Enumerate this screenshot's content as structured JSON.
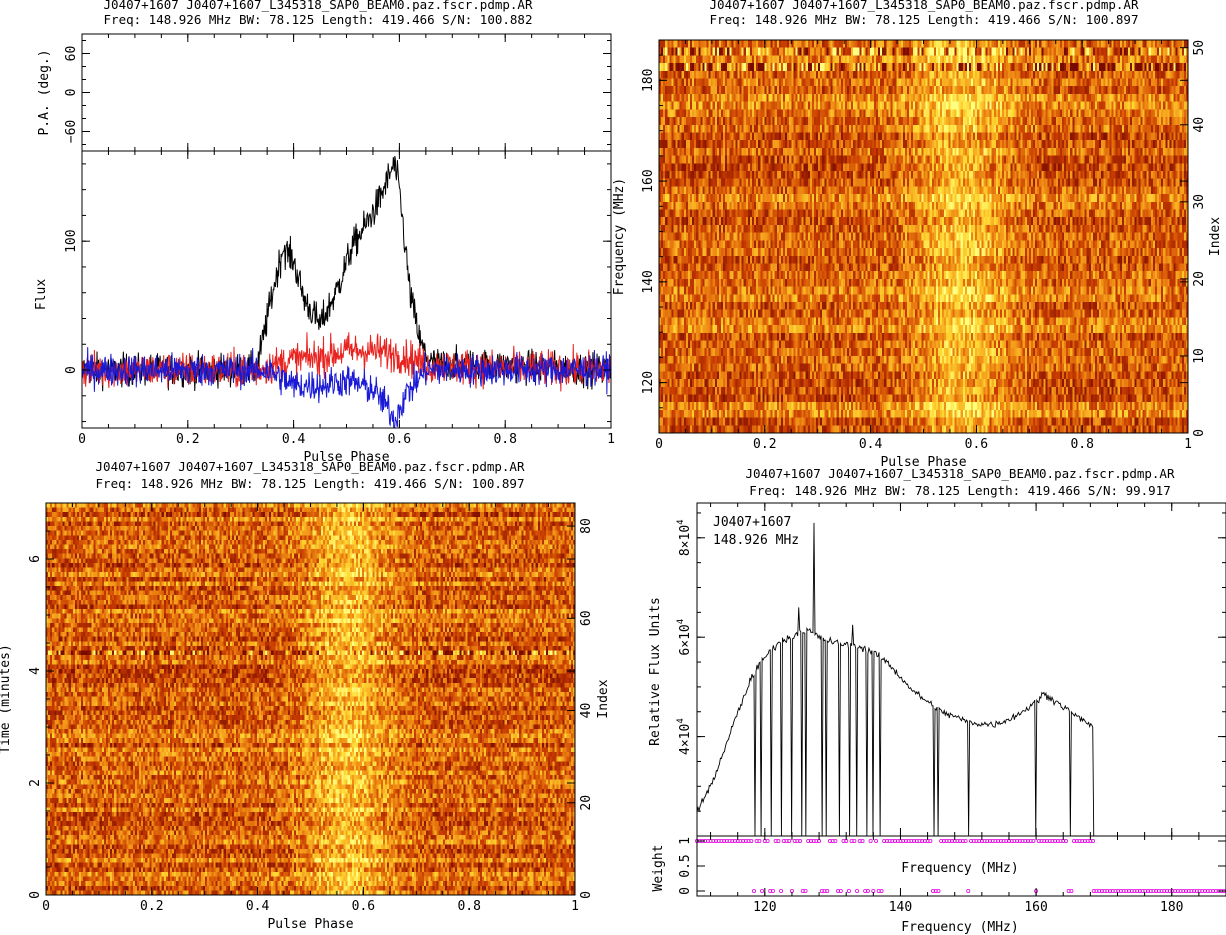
{
  "colors": {
    "background": "#ffffff",
    "total_intensity": "#000000",
    "linear": "#e8231f",
    "circular": "#1a1ad6",
    "weight_marker": "#e600e6",
    "heat_low": "#9a1400",
    "heat_mid": "#e8780a",
    "heat_high": "#ffff60"
  },
  "panels": {
    "profile": {
      "title_line1": "J0407+1607 J0407+1607_L345318_SAP0_BEAM0.paz.fscr.pdmp.AR",
      "title_line2": "Freq: 148.926 MHz BW: 78.125 Length: 419.466 S/N: 100.882"
    },
    "phase_freq": {
      "title_line1": "J0407+1607 J0407+1607_L345318_SAP0_BEAM0.paz.fscr.pdmp.AR",
      "title_line2": "Freq: 148.926 MHz BW: 78.125 Length: 419.466 S/N: 100.897"
    },
    "phase_time": {
      "title_line1": "J0407+1607 J0407+1607_L345318_SAP0_BEAM0.paz.fscr.pdmp.AR",
      "title_line2": "Freq: 148.926 MHz BW: 78.125 Length: 419.466 S/N: 100.897"
    },
    "bandpass": {
      "title_line1": "J0407+1607 J0407+1607_L345318_SAP0_BEAM0.paz.fscr.pdmp.AR",
      "title_line2": "Freq: 148.926 MHz BW: 78.125 Length: 419.466 S/N: 99.917",
      "annotation_line1": "J0407+1607",
      "annotation_line2": "148.926 MHz"
    }
  },
  "chart_data": [
    {
      "type": "line",
      "panel": "profile-pa",
      "ylabel": "P.A. (deg.)",
      "xlim": [
        0,
        1
      ],
      "ylim": [
        -90,
        90
      ],
      "yticks": [
        {
          "v": -60,
          "label": "−60"
        },
        {
          "v": 0,
          "label": "0"
        },
        {
          "v": 60,
          "label": "60"
        }
      ],
      "series": []
    },
    {
      "type": "line",
      "panel": "profile-flux",
      "xlabel": "Pulse Phase",
      "ylabel": "Flux",
      "xlim": [
        0,
        1
      ],
      "ylim": [
        -45,
        170
      ],
      "xticks": [
        {
          "v": 0,
          "label": "0"
        },
        {
          "v": 0.2,
          "label": "0.2"
        },
        {
          "v": 0.4,
          "label": "0.4"
        },
        {
          "v": 0.6,
          "label": "0.6"
        },
        {
          "v": 0.8,
          "label": "0.8"
        },
        {
          "v": 1,
          "label": "1"
        }
      ],
      "yticks": [
        {
          "v": 0,
          "label": "0"
        },
        {
          "v": 100,
          "label": "100"
        }
      ],
      "series": [
        {
          "key": "I",
          "color": "#000000",
          "noise": 9,
          "x": [
            0,
            0.33,
            0.36,
            0.38,
            0.4,
            0.42,
            0.45,
            0.48,
            0.51,
            0.54,
            0.56,
            0.58,
            0.59,
            0.6,
            0.62,
            0.64,
            0.66,
            1
          ],
          "y": [
            0,
            0,
            60,
            95,
            85,
            55,
            35,
            60,
            95,
            115,
            130,
            150,
            160,
            140,
            60,
            20,
            5,
            0
          ]
        },
        {
          "key": "L",
          "color": "#e8231f",
          "noise": 10,
          "x": [
            0,
            0.33,
            0.4,
            0.45,
            0.5,
            0.55,
            0.6,
            0.66,
            1
          ],
          "y": [
            0,
            0,
            8,
            10,
            15,
            15,
            12,
            3,
            0
          ]
        },
        {
          "key": "V",
          "color": "#1a1ad6",
          "noise": 9,
          "x": [
            0,
            0.35,
            0.4,
            0.45,
            0.5,
            0.55,
            0.58,
            0.59,
            0.61,
            0.65,
            1
          ],
          "y": [
            0,
            0,
            -12,
            -12,
            -8,
            -15,
            -30,
            -40,
            -20,
            0,
            0
          ]
        }
      ]
    },
    {
      "type": "heatmap",
      "panel": "phase-freq",
      "xlabel": "Pulse Phase",
      "ylabel": "Frequency (MHz)",
      "y2label": "Index",
      "xlim": [
        0,
        1
      ],
      "ylim": [
        110,
        188
      ],
      "y2lim": [
        0,
        51
      ],
      "xticks": [
        {
          "v": 0,
          "label": "0"
        },
        {
          "v": 0.2,
          "label": "0.2"
        },
        {
          "v": 0.4,
          "label": "0.4"
        },
        {
          "v": 0.6,
          "label": "0.6"
        },
        {
          "v": 0.8,
          "label": "0.8"
        },
        {
          "v": 1,
          "label": "1"
        }
      ],
      "yticks": [
        {
          "v": 120,
          "label": "120"
        },
        {
          "v": 140,
          "label": "140"
        },
        {
          "v": 160,
          "label": "160"
        },
        {
          "v": 180,
          "label": "180"
        }
      ],
      "y2ticks": [
        {
          "v": 0,
          "label": "0"
        },
        {
          "v": 10,
          "label": "10"
        },
        {
          "v": 20,
          "label": "20"
        },
        {
          "v": 30,
          "label": "30"
        },
        {
          "v": 40,
          "label": "40"
        },
        {
          "v": 50,
          "label": "50"
        }
      ],
      "pulse_center": 0.57,
      "pulse_width": 0.09
    },
    {
      "type": "heatmap",
      "panel": "phase-time",
      "xlabel": "Pulse Phase",
      "ylabel": "Time (minutes)",
      "y2label": "Index",
      "xlim": [
        0,
        1
      ],
      "ylim": [
        0,
        7
      ],
      "y2lim": [
        0,
        85
      ],
      "xticks": [
        {
          "v": 0,
          "label": "0"
        },
        {
          "v": 0.2,
          "label": "0.2"
        },
        {
          "v": 0.4,
          "label": "0.4"
        },
        {
          "v": 0.6,
          "label": "0.6"
        },
        {
          "v": 0.8,
          "label": "0.8"
        },
        {
          "v": 1,
          "label": "1"
        }
      ],
      "yticks": [
        {
          "v": 0,
          "label": "0"
        },
        {
          "v": 2,
          "label": "2"
        },
        {
          "v": 4,
          "label": "4"
        },
        {
          "v": 6,
          "label": "6"
        }
      ],
      "y2ticks": [
        {
          "v": 0,
          "label": "0"
        },
        {
          "v": 20,
          "label": "20"
        },
        {
          "v": 40,
          "label": "40"
        },
        {
          "v": 60,
          "label": "60"
        },
        {
          "v": 80,
          "label": "80"
        }
      ],
      "pulse_center": 0.57,
      "pulse_width": 0.08
    },
    {
      "type": "line",
      "panel": "bandpass",
      "xlabel": "Frequency (MHz)",
      "ylabel": "Relative Flux Units",
      "xlim": [
        110,
        188
      ],
      "ylim": [
        20000,
        87000
      ],
      "yticks": [
        {
          "v": 40000,
          "base": "4×10",
          "exp": "4"
        },
        {
          "v": 60000,
          "base": "6×10",
          "exp": "4"
        },
        {
          "v": 80000,
          "base": "8×10",
          "exp": "4"
        }
      ],
      "envelope": {
        "x": [
          110,
          112,
          114,
          116,
          117,
          118,
          120,
          122,
          124,
          125,
          126,
          127,
          128,
          130,
          132,
          134,
          136,
          138,
          140,
          142,
          144,
          146,
          148,
          150,
          152,
          154,
          156,
          158,
          160,
          161,
          162,
          164,
          166,
          168.5
        ],
        "y": [
          25000,
          30000,
          37000,
          45000,
          48000,
          52000,
          56000,
          59000,
          60000,
          61000,
          61500,
          61000,
          60000,
          59000,
          58500,
          58000,
          57000,
          55000,
          52000,
          49000,
          47000,
          45000,
          44000,
          43000,
          42500,
          42500,
          43500,
          45000,
          47000,
          48500,
          48000,
          46000,
          44000,
          42000
        ]
      },
      "flagged_channels": [
        118.5,
        119.5,
        121,
        122.5,
        124,
        125.5,
        126,
        128.5,
        129,
        131,
        132.5,
        133.5,
        135,
        136,
        137,
        145,
        145.5,
        150,
        160,
        165
      ],
      "spikes": [
        {
          "x": 125,
          "y": 66000
        },
        {
          "x": 127.3,
          "y": 83000
        },
        {
          "x": 133,
          "y": 62500
        }
      ]
    },
    {
      "type": "scatter",
      "panel": "bandpass-weight",
      "xlabel": "Frequency (MHz)",
      "ylabel": "Weight",
      "xlim": [
        110,
        188
      ],
      "ylim": [
        -0.1,
        1.1
      ],
      "xticks": [
        {
          "v": 120,
          "label": "120"
        },
        {
          "v": 140,
          "label": "140"
        },
        {
          "v": 160,
          "label": "160"
        },
        {
          "v": 180,
          "label": "180"
        }
      ],
      "yticks": [
        {
          "v": 0,
          "label": "0"
        },
        {
          "v": 0.5,
          "label": "0.5"
        },
        {
          "v": 1,
          "label": "1"
        }
      ],
      "weight_one_range": [
        110,
        168.5
      ],
      "weight_zero_range": [
        168.5,
        188
      ]
    }
  ]
}
